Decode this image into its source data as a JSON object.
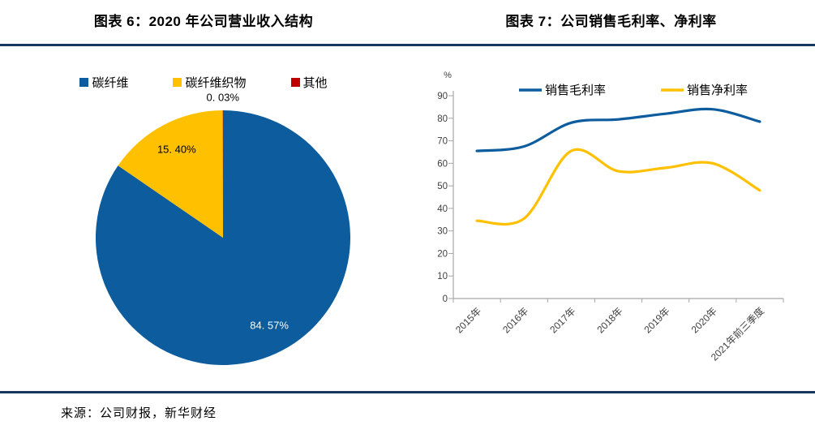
{
  "header": {
    "left_title": "图表 6：2020 年公司营业收入结构",
    "right_title": "图表 7：公司销售毛利率、净利率"
  },
  "footer": {
    "source_note": "来源：公司财报，新华财经"
  },
  "colors": {
    "divider_navy": "#17375E",
    "series_blue": "#0C5C9E",
    "series_yellow": "#FFC000",
    "series_red": "#C00000",
    "axis_gray": "#A6A6A6",
    "tick_text": "#404040"
  },
  "chart_data": [
    {
      "type": "pie",
      "title": "2020 年公司营业收入结构",
      "legend_position": "top",
      "start_angle_deg": 0,
      "direction": "clockwise",
      "slices": [
        {
          "key": "carbon_fiber",
          "label": "碳纤维",
          "value": 84.57,
          "display": "84. 57%",
          "color": "#0C5C9E",
          "label_color": "#FFFFFF"
        },
        {
          "key": "carbon_fiber_fabric",
          "label": "碳纤维织物",
          "value": 15.4,
          "display": "15. 40%",
          "color": "#FFC000",
          "label_color": "#000000"
        },
        {
          "key": "other",
          "label": "其他",
          "value": 0.03,
          "display": "0. 03%",
          "color": "#C00000",
          "label_color": "#000000"
        }
      ]
    },
    {
      "type": "line",
      "unit_label": "%",
      "categories": [
        "2015年",
        "2016年",
        "2017年",
        "2018年",
        "2019年",
        "2020年",
        "2021年前三季度"
      ],
      "series": [
        {
          "key": "gross_margin",
          "name": "销售毛利率",
          "color": "#0C5C9E",
          "values": [
            65.5,
            67.5,
            78,
            79.5,
            82,
            84,
            78.5
          ]
        },
        {
          "key": "net_margin",
          "name": "销售净利率",
          "color": "#FFC000",
          "values": [
            34.5,
            35.5,
            65.5,
            56.5,
            58,
            60,
            48
          ]
        }
      ],
      "ylim": [
        0,
        90
      ],
      "ytick_step": 10,
      "grid": false,
      "legend_position": "top",
      "smooth_lines": true
    }
  ]
}
